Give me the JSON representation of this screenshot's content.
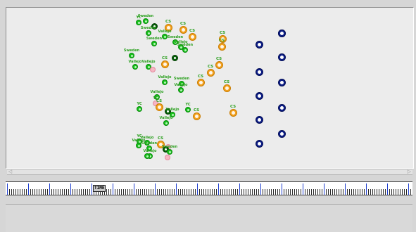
{
  "timeline": {
    "marker_label": "TIME"
  },
  "scrollbar": {
    "left_arrow": "◁",
    "right_arrow": "▷"
  },
  "network": {
    "colors": {
      "cs": "#f3a11f",
      "green": "#17c21b",
      "dark": "#06600a",
      "pink": "#f5b6c3",
      "navy": "#0d1e86",
      "label": "#2ba01f"
    },
    "nodes": [
      {
        "kind": "green",
        "label": "YC"
      },
      {
        "kind": "green",
        "label": "Sweden"
      },
      {
        "kind": "dark",
        "label": ""
      },
      {
        "kind": "cs",
        "label": "CS"
      },
      {
        "kind": "cs",
        "label": "CS"
      },
      {
        "kind": "cs",
        "label": "CS"
      },
      {
        "kind": "green",
        "label": "Sweden"
      },
      {
        "kind": "green",
        "label": "Vallejo"
      },
      {
        "kind": "cs",
        "label": "CS"
      },
      {
        "kind": "cs",
        "label": "CS"
      },
      {
        "kind": "green",
        "label": "Sweden"
      },
      {
        "kind": "green",
        "label": "Sweden"
      },
      {
        "kind": "green",
        "label": "Vallejo"
      },
      {
        "kind": "green",
        "label": "Sweden"
      },
      {
        "kind": "dark",
        "label": ""
      },
      {
        "kind": "green",
        "label": "Sweden"
      },
      {
        "kind": "green",
        "label": "Vallejo"
      },
      {
        "kind": "cs",
        "label": "CS"
      },
      {
        "kind": "green",
        "label": "Vallejo"
      },
      {
        "kind": "pink",
        "label": ""
      },
      {
        "kind": "cs",
        "label": "CS"
      },
      {
        "kind": "cs",
        "label": "CS"
      },
      {
        "kind": "cs",
        "label": "CS"
      },
      {
        "kind": "green",
        "label": "Vallejo"
      },
      {
        "kind": "green",
        "label": "Sweden"
      },
      {
        "kind": "green",
        "label": "Vallejo"
      },
      {
        "kind": "cs",
        "label": "CS"
      },
      {
        "kind": "green",
        "label": "Vallejo"
      },
      {
        "kind": "pink",
        "label": "YC"
      },
      {
        "kind": "green",
        "label": "YC"
      },
      {
        "kind": "cs",
        "label": "CS"
      },
      {
        "kind": "dark",
        "label": ""
      },
      {
        "kind": "green",
        "label": "Vallejo"
      },
      {
        "kind": "green",
        "label": "YC"
      },
      {
        "kind": "cs",
        "label": "CS"
      },
      {
        "kind": "cs",
        "label": "CS"
      },
      {
        "kind": "green",
        "label": "Vallejo"
      },
      {
        "kind": "green",
        "label": "YC"
      },
      {
        "kind": "green",
        "label": "Vallejo"
      },
      {
        "kind": "cs",
        "label": "CS"
      },
      {
        "kind": "green",
        "label": "Vallejo"
      },
      {
        "kind": "green",
        "label": "Sweden"
      },
      {
        "kind": "pink",
        "label": ""
      },
      {
        "kind": "dark",
        "label": ""
      },
      {
        "kind": "green",
        "label": "Sweden"
      },
      {
        "kind": "green",
        "label": "Vallejo"
      },
      {
        "kind": "green",
        "label": ""
      },
      {
        "kind": "pink",
        "label": ""
      },
      {
        "kind": "navy",
        "label": ""
      },
      {
        "kind": "navy",
        "label": ""
      },
      {
        "kind": "navy",
        "label": ""
      },
      {
        "kind": "navy",
        "label": ""
      },
      {
        "kind": "navy",
        "label": ""
      },
      {
        "kind": "navy",
        "label": ""
      },
      {
        "kind": "navy",
        "label": ""
      },
      {
        "kind": "navy",
        "label": ""
      },
      {
        "kind": "navy",
        "label": ""
      },
      {
        "kind": "navy",
        "label": ""
      },
      {
        "kind": "navy",
        "label": ""
      }
    ]
  }
}
